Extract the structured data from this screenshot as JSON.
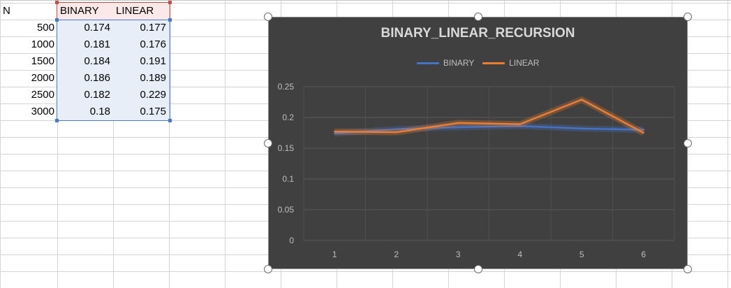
{
  "sheet": {
    "headers": [
      "N",
      "BINARY",
      "LINEAR"
    ],
    "rows": [
      [
        "500",
        "0.174",
        "0.177"
      ],
      [
        "1000",
        "0.181",
        "0.176"
      ],
      [
        "1500",
        "0.184",
        "0.191"
      ],
      [
        "2000",
        "0.186",
        "0.189"
      ],
      [
        "2500",
        "0.182",
        "0.229"
      ],
      [
        "3000",
        "0.18",
        "0.175"
      ]
    ]
  },
  "colors": {
    "binary": "#4472c4",
    "linear": "#ed7d31",
    "chart_bg": "#404040",
    "selection_border": "#4a78c2",
    "header_border": "#c0504d"
  },
  "chart_data": {
    "type": "line",
    "title": "BINARY_LINEAR_RECURSION",
    "categories": [
      "1",
      "2",
      "3",
      "4",
      "5",
      "6"
    ],
    "series": [
      {
        "name": "BINARY",
        "values": [
          0.174,
          0.181,
          0.184,
          0.186,
          0.182,
          0.18
        ]
      },
      {
        "name": "LINEAR",
        "values": [
          0.177,
          0.176,
          0.191,
          0.189,
          0.229,
          0.175
        ]
      }
    ],
    "yticks": [
      "0",
      "0.05",
      "0.1",
      "0.15",
      "0.2",
      "0.25"
    ],
    "ylim": [
      0,
      0.25
    ],
    "grid": true,
    "legend": "top"
  }
}
